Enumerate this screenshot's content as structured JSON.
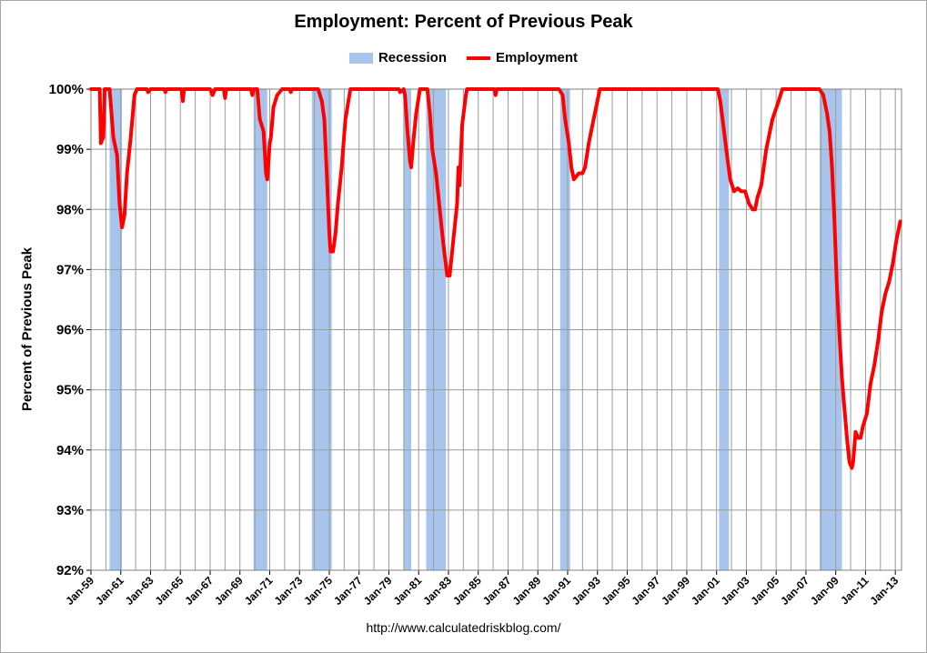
{
  "chart_data": {
    "type": "line",
    "title": "Employment: Percent of Previous Peak",
    "ylabel": "Percent of Previous Peak",
    "xlabel": "",
    "source": "http://www.calculatedriskblog.com/",
    "ylim": [
      92,
      100
    ],
    "xlim": [
      "1959-01",
      "2013-06"
    ],
    "y_ticks": [
      "92%",
      "93%",
      "94%",
      "95%",
      "96%",
      "97%",
      "98%",
      "99%",
      "100%"
    ],
    "x_ticks": [
      "Jan-59",
      "Jan-61",
      "Jan-63",
      "Jan-65",
      "Jan-67",
      "Jan-69",
      "Jan-71",
      "Jan-73",
      "Jan-75",
      "Jan-77",
      "Jan-79",
      "Jan-81",
      "Jan-83",
      "Jan-85",
      "Jan-87",
      "Jan-89",
      "Jan-91",
      "Jan-93",
      "Jan-95",
      "Jan-97",
      "Jan-99",
      "Jan-01",
      "Jan-03",
      "Jan-05",
      "Jan-07",
      "Jan-09",
      "Jan-11",
      "Jan-13"
    ],
    "grid": "vertical and horizontal",
    "legend_position": "top",
    "legend": [
      {
        "name": "Recession",
        "type": "bar",
        "color": "#a7c5ec"
      },
      {
        "name": "Employment",
        "type": "line",
        "color": "#ff0000"
      }
    ],
    "recessions": [
      {
        "start": "1960-04",
        "end": "1961-02"
      },
      {
        "start": "1969-12",
        "end": "1970-11"
      },
      {
        "start": "1973-11",
        "end": "1975-03"
      },
      {
        "start": "1980-01",
        "end": "1980-07"
      },
      {
        "start": "1981-07",
        "end": "1982-11"
      },
      {
        "start": "1990-07",
        "end": "1991-03"
      },
      {
        "start": "2001-03",
        "end": "2001-11"
      },
      {
        "start": "2007-12",
        "end": "2009-06"
      }
    ],
    "series": [
      {
        "name": "Employment",
        "color": "#ff0000",
        "points": [
          [
            "1959-01",
            100
          ],
          [
            "1959-08",
            100
          ],
          [
            "1959-09",
            99.1
          ],
          [
            "1959-11",
            99.2
          ],
          [
            "1959-12",
            100
          ],
          [
            "1960-04",
            100
          ],
          [
            "1960-07",
            99.2
          ],
          [
            "1960-10",
            98.9
          ],
          [
            "1960-12",
            98.1
          ],
          [
            "1961-02",
            97.7
          ],
          [
            "1961-04",
            97.9
          ],
          [
            "1961-06",
            98.6
          ],
          [
            "1961-09",
            99.2
          ],
          [
            "1961-12",
            99.9
          ],
          [
            "1962-02",
            100
          ],
          [
            "1962-10",
            100
          ],
          [
            "1962-11",
            99.95
          ],
          [
            "1963-01",
            100
          ],
          [
            "1963-12",
            100
          ],
          [
            "1964-01",
            99.95
          ],
          [
            "1964-02",
            100
          ],
          [
            "1965-02",
            100
          ],
          [
            "1965-03",
            99.8
          ],
          [
            "1965-04",
            100
          ],
          [
            "1967-01",
            100
          ],
          [
            "1967-03",
            99.9
          ],
          [
            "1967-05",
            100
          ],
          [
            "1967-12",
            100
          ],
          [
            "1968-01",
            99.85
          ],
          [
            "1968-02",
            100
          ],
          [
            "1969-10",
            100
          ],
          [
            "1969-11",
            99.9
          ],
          [
            "1969-12",
            100
          ],
          [
            "1970-03",
            100
          ],
          [
            "1970-05",
            99.5
          ],
          [
            "1970-08",
            99.3
          ],
          [
            "1970-10",
            98.6
          ],
          [
            "1970-11",
            98.5
          ],
          [
            "1971-01",
            99.1
          ],
          [
            "1971-02",
            99.2
          ],
          [
            "1971-04",
            99.7
          ],
          [
            "1971-07",
            99.9
          ],
          [
            "1971-11",
            100
          ],
          [
            "1972-05",
            100
          ],
          [
            "1972-06",
            99.95
          ],
          [
            "1972-07",
            100
          ],
          [
            "1974-04",
            100
          ],
          [
            "1974-07",
            99.8
          ],
          [
            "1974-09",
            99.5
          ],
          [
            "1974-11",
            98.6
          ],
          [
            "1975-01",
            97.6
          ],
          [
            "1975-02",
            97.3
          ],
          [
            "1975-04",
            97.3
          ],
          [
            "1975-06",
            97.6
          ],
          [
            "1975-08",
            98.1
          ],
          [
            "1975-11",
            98.7
          ],
          [
            "1976-02",
            99.5
          ],
          [
            "1976-06",
            100
          ],
          [
            "1979-09",
            100
          ],
          [
            "1979-10",
            99.95
          ],
          [
            "1980-01",
            100
          ],
          [
            "1980-02",
            99.9
          ],
          [
            "1980-04",
            99.3
          ],
          [
            "1980-06",
            98.8
          ],
          [
            "1980-07",
            98.7
          ],
          [
            "1980-09",
            99.2
          ],
          [
            "1980-11",
            99.6
          ],
          [
            "1981-02",
            100
          ],
          [
            "1981-08",
            100
          ],
          [
            "1981-10",
            99.6
          ],
          [
            "1981-12",
            99
          ],
          [
            "1982-03",
            98.6
          ],
          [
            "1982-06",
            98
          ],
          [
            "1982-09",
            97.4
          ],
          [
            "1982-12",
            96.9
          ],
          [
            "1983-02",
            96.9
          ],
          [
            "1983-05",
            97.5
          ],
          [
            "1983-08",
            98.1
          ],
          [
            "1983-09",
            98.7
          ],
          [
            "1983-10",
            98.4
          ],
          [
            "1983-12",
            99.4
          ],
          [
            "1984-03",
            99.9
          ],
          [
            "1984-04",
            100
          ],
          [
            "1986-02",
            100
          ],
          [
            "1986-03",
            99.9
          ],
          [
            "1986-04",
            100
          ],
          [
            "1990-06",
            100
          ],
          [
            "1990-09",
            99.9
          ],
          [
            "1990-11",
            99.5
          ],
          [
            "1991-02",
            99.1
          ],
          [
            "1991-04",
            98.7
          ],
          [
            "1991-06",
            98.5
          ],
          [
            "1991-10",
            98.6
          ],
          [
            "1992-01",
            98.6
          ],
          [
            "1992-03",
            98.7
          ],
          [
            "1992-06",
            99.1
          ],
          [
            "1992-09",
            99.4
          ],
          [
            "1992-12",
            99.7
          ],
          [
            "1993-03",
            100
          ],
          [
            "2001-02",
            100
          ],
          [
            "2001-04",
            99.8
          ],
          [
            "2001-07",
            99.3
          ],
          [
            "2001-10",
            98.8
          ],
          [
            "2001-12",
            98.5
          ],
          [
            "2002-03",
            98.3
          ],
          [
            "2002-06",
            98.35
          ],
          [
            "2002-09",
            98.3
          ],
          [
            "2002-12",
            98.3
          ],
          [
            "2003-03",
            98.1
          ],
          [
            "2003-06",
            98
          ],
          [
            "2003-08",
            98
          ],
          [
            "2003-10",
            98.2
          ],
          [
            "2004-01",
            98.4
          ],
          [
            "2004-05",
            99
          ],
          [
            "2004-10",
            99.5
          ],
          [
            "2005-03",
            99.8
          ],
          [
            "2005-06",
            100
          ],
          [
            "2007-12",
            100
          ],
          [
            "2008-03",
            99.9
          ],
          [
            "2008-06",
            99.6
          ],
          [
            "2008-08",
            99.3
          ],
          [
            "2008-10",
            98.7
          ],
          [
            "2008-12",
            97.8
          ],
          [
            "2009-02",
            96.7
          ],
          [
            "2009-04",
            95.9
          ],
          [
            "2009-06",
            95.2
          ],
          [
            "2009-08",
            94.7
          ],
          [
            "2009-10",
            94.2
          ],
          [
            "2009-12",
            93.8
          ],
          [
            "2010-02",
            93.7
          ],
          [
            "2010-03",
            93.8
          ],
          [
            "2010-05",
            94.3
          ],
          [
            "2010-07",
            94.2
          ],
          [
            "2010-09",
            94.2
          ],
          [
            "2010-11",
            94.4
          ],
          [
            "2011-02",
            94.6
          ],
          [
            "2011-05",
            95.1
          ],
          [
            "2011-08",
            95.4
          ],
          [
            "2011-11",
            95.8
          ],
          [
            "2012-02",
            96.3
          ],
          [
            "2012-05",
            96.6
          ],
          [
            "2012-08",
            96.8
          ],
          [
            "2012-11",
            97.1
          ],
          [
            "2013-02",
            97.5
          ],
          [
            "2013-05",
            97.8
          ]
        ]
      }
    ]
  }
}
